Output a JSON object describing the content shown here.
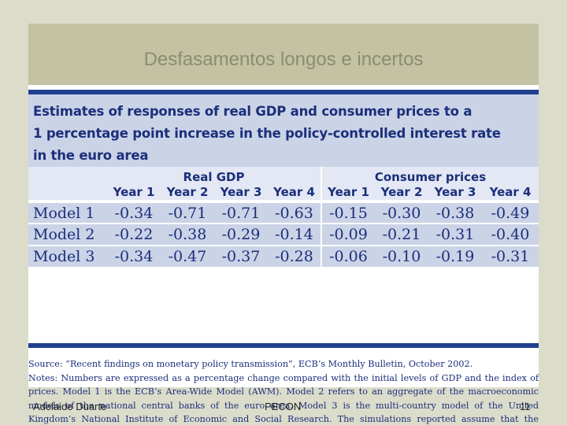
{
  "slide": {
    "title": "Desfasamentos longos e incertos",
    "footer_left": "Adelaide Duarte",
    "footer_center": "PECON",
    "page_number": "11"
  },
  "figure": {
    "heading_line1": "Estimates of responses of real GDP and consumer prices to a",
    "heading_line2": "1 percentage point increase in the policy-controlled interest rate",
    "heading_line3": "in the euro area",
    "group_headers": [
      "Real GDP",
      "Consumer prices"
    ],
    "year_headers": [
      "Year 1",
      "Year 2",
      "Year 3",
      "Year 4",
      "Year 1",
      "Year 2",
      "Year 3",
      "Year 4"
    ],
    "rows": [
      {
        "model": "Model 1",
        "values": [
          "-0.34",
          "-0.71",
          "-0.71",
          "-0.63",
          "-0.15",
          "-0.30",
          "-0.38",
          "-0.49"
        ]
      },
      {
        "model": "Model 2",
        "values": [
          "-0.22",
          "-0.38",
          "-0.29",
          "-0.14",
          "-0.09",
          "-0.21",
          "-0.31",
          "-0.40"
        ]
      },
      {
        "model": "Model 3",
        "values": [
          "-0.34",
          "-0.47",
          "-0.37",
          "-0.28",
          "-0.06",
          "-0.10",
          "-0.19",
          "-0.31"
        ]
      }
    ],
    "source_line": "Source: “Recent findings on monetary policy transmission”, ECB’s Monthly Bulletin, October 2002.",
    "notes_text": "Notes: Numbers are expressed as a percentage change compared with the initial levels of GDP and the index of prices. Model 1 is the ECB’s Area-Wide Model (AWM). Model 2 refers to an aggregate of the macroeconomic models of the national central banks of the euro area. Model 3 is the multi-country model of the United Kingdom’s National Institute of Economic and Social Research. The simulations reported assume that the interest rate increase triggers an increase in the long-term interest rate and an exchange rate appreciation."
  }
}
